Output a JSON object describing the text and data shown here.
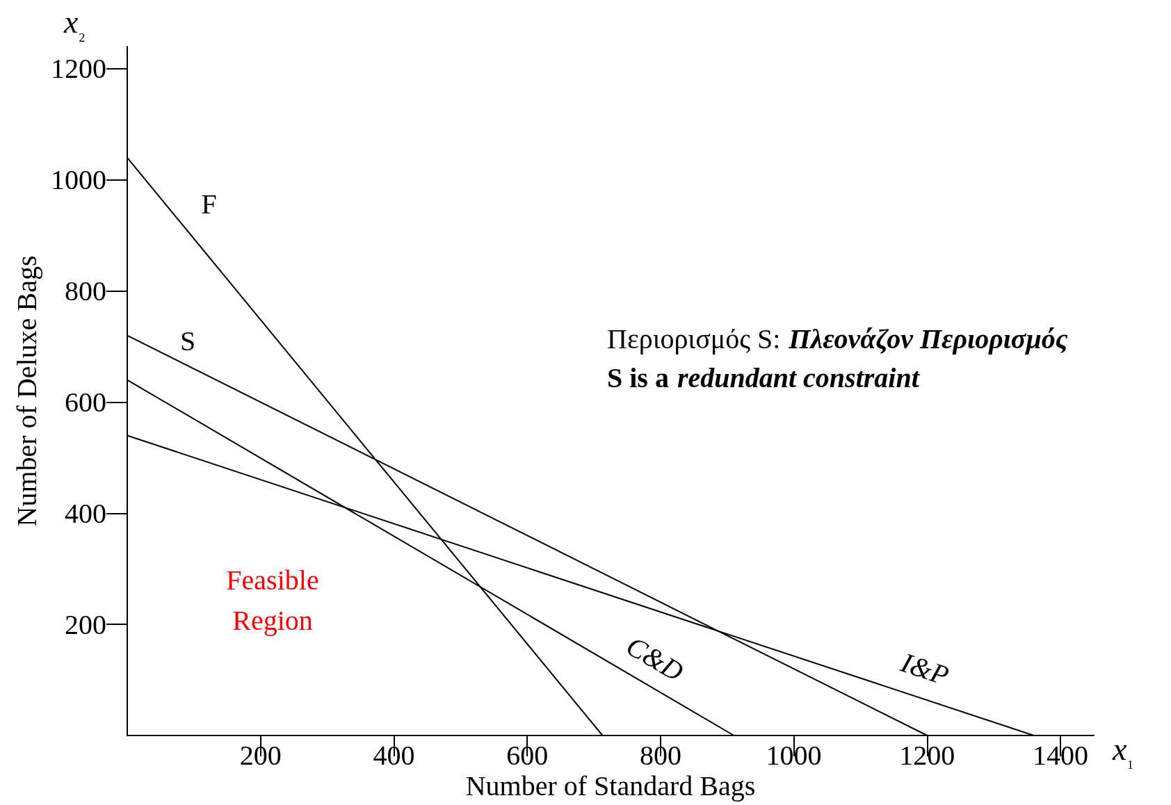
{
  "chart_data": {
    "type": "line",
    "xlabel": "Number of Standard Bags",
    "ylabel": "Number of Deluxe Bags",
    "xlim": [
      0,
      1450
    ],
    "ylim": [
      0,
      1240
    ],
    "xticks": [
      200,
      400,
      600,
      800,
      1000,
      1200,
      1400
    ],
    "yticks": [
      200,
      400,
      600,
      800,
      1000,
      1200
    ],
    "grid": false,
    "legend": false,
    "marker": "none",
    "line_style": "solid",
    "series": [
      {
        "name": "F",
        "color": "#000000",
        "x": [
          0,
          713
        ],
        "values": [
          1040,
          0
        ]
      },
      {
        "name": "S",
        "color": "#000000",
        "x": [
          0,
          1200
        ],
        "values": [
          720,
          0
        ]
      },
      {
        "name": "C&D",
        "color": "#000000",
        "x": [
          0,
          910
        ],
        "values": [
          640,
          0
        ]
      },
      {
        "name": "I&P",
        "color": "#000000",
        "x": [
          0,
          1360
        ],
        "values": [
          540,
          0
        ]
      }
    ],
    "annotations": [
      "x₁",
      "x₂",
      "Περιορισμός S:",
      "Πλεονάζον Περιορισμός",
      "S is a",
      "redundant constraint",
      "Feasible Region"
    ]
  }
}
